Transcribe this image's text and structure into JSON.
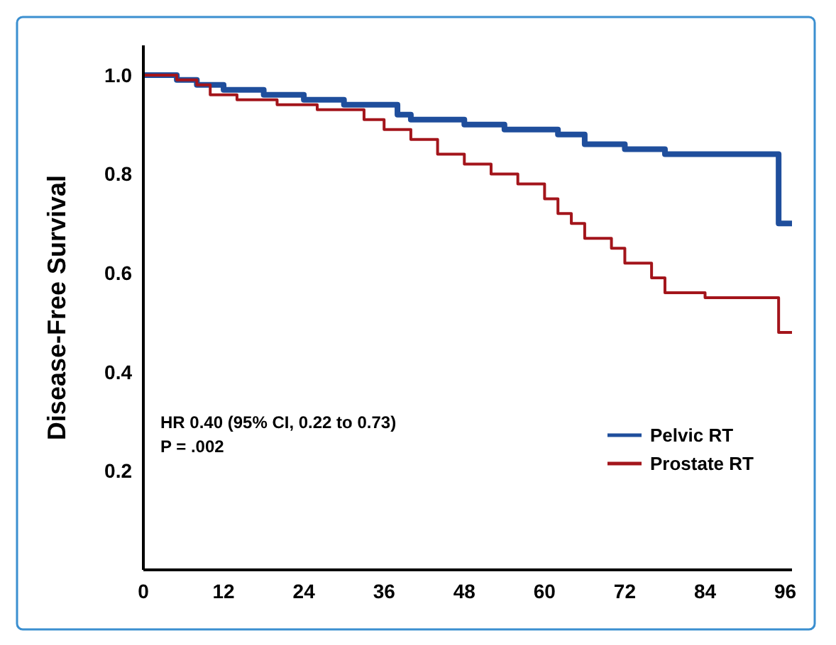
{
  "chart_data": {
    "type": "step",
    "ylabel": "Disease-Free Survival",
    "xlim": [
      0,
      97
    ],
    "xticks": [
      0,
      12,
      24,
      36,
      48,
      60,
      72,
      84,
      96
    ],
    "ylim": [
      0,
      1.06
    ],
    "yticks": [
      {
        "value": 0.2,
        "label": "0.2"
      },
      {
        "value": 0.4,
        "label": "0.4"
      },
      {
        "value": 0.6,
        "label": "0.6"
      },
      {
        "value": 0.8,
        "label": "0.8"
      },
      {
        "value": 1.0,
        "label": "1.0"
      }
    ],
    "legend": "bottom right",
    "grid": false,
    "annotations": [
      "HR 0.40 (95% CI, 0.22 to 0.73)",
      "P = .002"
    ],
    "series": [
      {
        "name": "Pelvic RT",
        "color": "#1f4e9c",
        "x": [
          0,
          5,
          8,
          12,
          18,
          24,
          30,
          38,
          40,
          48,
          54,
          62,
          66,
          72,
          78,
          95,
          97
        ],
        "values": [
          1.0,
          0.99,
          0.98,
          0.97,
          0.96,
          0.95,
          0.94,
          0.92,
          0.91,
          0.9,
          0.89,
          0.88,
          0.86,
          0.85,
          0.84,
          0.7,
          0.7
        ]
      },
      {
        "name": "Prostate RT",
        "color": "#a3151b",
        "x": [
          0,
          5,
          8,
          10,
          14,
          20,
          26,
          33,
          36,
          40,
          44,
          48,
          52,
          56,
          60,
          62,
          64,
          66,
          70,
          72,
          76,
          78,
          84,
          95,
          97
        ],
        "values": [
          1.0,
          0.99,
          0.98,
          0.96,
          0.95,
          0.94,
          0.93,
          0.91,
          0.89,
          0.87,
          0.84,
          0.82,
          0.8,
          0.78,
          0.75,
          0.72,
          0.7,
          0.67,
          0.65,
          0.62,
          0.59,
          0.56,
          0.55,
          0.48,
          0.48
        ]
      }
    ]
  }
}
